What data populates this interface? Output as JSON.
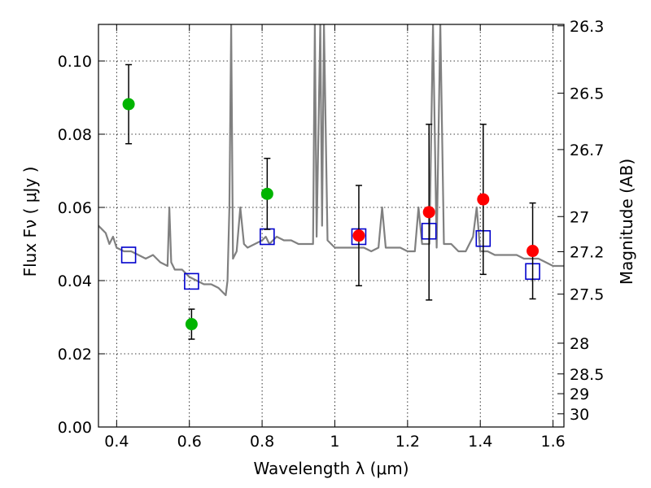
{
  "chart_data": {
    "type": "scatter",
    "xlabel": "Wavelength  λ (μm)",
    "ylabel": "Flux  Fν  ( μJy )",
    "ylabel_right": "Magnitude (AB)",
    "xlim": [
      0.35,
      1.63
    ],
    "ylim": [
      0.0,
      0.11
    ],
    "grid": true,
    "x_ticks": [
      0.4,
      0.6,
      0.8,
      1.0,
      1.2,
      1.4,
      1.6
    ],
    "x_tick_labels": [
      "0.4",
      "0.6",
      "0.8",
      "1",
      "1.2",
      "1.4",
      "1.6"
    ],
    "y_ticks": [
      0.0,
      0.02,
      0.04,
      0.06,
      0.08,
      0.1
    ],
    "y_tick_labels": [
      "0.00",
      "0.02",
      "0.04",
      "0.06",
      "0.08",
      "0.10"
    ],
    "right_ticks": [
      {
        "flux": 0.1096,
        "label": "26.3"
      },
      {
        "flux": 0.0912,
        "label": "26.5"
      },
      {
        "flux": 0.0758,
        "label": "26.7"
      },
      {
        "flux": 0.0575,
        "label": "27"
      },
      {
        "flux": 0.0479,
        "label": "27.2"
      },
      {
        "flux": 0.0363,
        "label": "27.5"
      },
      {
        "flux": 0.0229,
        "label": "28"
      },
      {
        "flux": 0.0145,
        "label": "28.5"
      },
      {
        "flux": 0.0091,
        "label": "29"
      },
      {
        "flux": 0.0036,
        "label": "30"
      }
    ],
    "series": [
      {
        "kind": "spectrum",
        "color": "#808080",
        "x": [
          0.35,
          0.37,
          0.38,
          0.39,
          0.4,
          0.42,
          0.44,
          0.46,
          0.48,
          0.5,
          0.52,
          0.54,
          0.545,
          0.55,
          0.56,
          0.58,
          0.6,
          0.62,
          0.64,
          0.66,
          0.68,
          0.7,
          0.705,
          0.71,
          0.715,
          0.72,
          0.73,
          0.74,
          0.75,
          0.76,
          0.78,
          0.8,
          0.81,
          0.82,
          0.83,
          0.84,
          0.86,
          0.88,
          0.9,
          0.92,
          0.94,
          0.945,
          0.95,
          0.96,
          0.965,
          0.97,
          0.98,
          1.0,
          1.02,
          1.04,
          1.06,
          1.08,
          1.1,
          1.12,
          1.13,
          1.14,
          1.16,
          1.18,
          1.2,
          1.22,
          1.23,
          1.24,
          1.26,
          1.27,
          1.28,
          1.29,
          1.3,
          1.32,
          1.34,
          1.36,
          1.38,
          1.39,
          1.4,
          1.42,
          1.44,
          1.46,
          1.48,
          1.5,
          1.52,
          1.54,
          1.56,
          1.58,
          1.6,
          1.62,
          1.63
        ],
        "y": [
          0.055,
          0.053,
          0.05,
          0.052,
          0.049,
          0.048,
          0.048,
          0.047,
          0.046,
          0.047,
          0.045,
          0.044,
          0.06,
          0.045,
          0.043,
          0.043,
          0.041,
          0.04,
          0.039,
          0.039,
          0.038,
          0.036,
          0.04,
          0.06,
          0.11,
          0.046,
          0.048,
          0.06,
          0.05,
          0.049,
          0.05,
          0.051,
          0.052,
          0.05,
          0.051,
          0.052,
          0.051,
          0.051,
          0.05,
          0.05,
          0.05,
          0.11,
          0.052,
          0.11,
          0.055,
          0.11,
          0.051,
          0.049,
          0.049,
          0.049,
          0.049,
          0.049,
          0.048,
          0.049,
          0.06,
          0.049,
          0.049,
          0.049,
          0.048,
          0.048,
          0.06,
          0.05,
          0.05,
          0.11,
          0.049,
          0.11,
          0.05,
          0.05,
          0.048,
          0.048,
          0.052,
          0.06,
          0.048,
          0.048,
          0.047,
          0.047,
          0.047,
          0.047,
          0.046,
          0.046,
          0.046,
          0.045,
          0.044,
          0.044,
          0.044
        ]
      },
      {
        "kind": "model-points",
        "marker": "open-square",
        "color": "#0000cc",
        "x": [
          0.433,
          0.606,
          0.814,
          1.066,
          1.259,
          1.408,
          1.544
        ],
        "y": [
          0.047,
          0.0398,
          0.052,
          0.052,
          0.0535,
          0.0515,
          0.0425
        ]
      },
      {
        "kind": "observed-points",
        "marker": "filled-circle",
        "color": "#00b400",
        "x": [
          0.433,
          0.606,
          0.814
        ],
        "y": [
          0.0882,
          0.0281,
          0.0637
        ],
        "err_low": [
          0.0108,
          0.0041,
          0.0097
        ],
        "err_high": [
          0.0108,
          0.0041,
          0.0097
        ]
      },
      {
        "kind": "observed-points",
        "marker": "filled-circle",
        "color": "#ff0000",
        "x": [
          1.066,
          1.259,
          1.408,
          1.544
        ],
        "y": [
          0.0523,
          0.0587,
          0.0622,
          0.0481
        ],
        "err_low": [
          0.0137,
          0.024,
          0.0205,
          0.0131
        ],
        "err_high": [
          0.0137,
          0.024,
          0.0205,
          0.0131
        ]
      }
    ]
  }
}
